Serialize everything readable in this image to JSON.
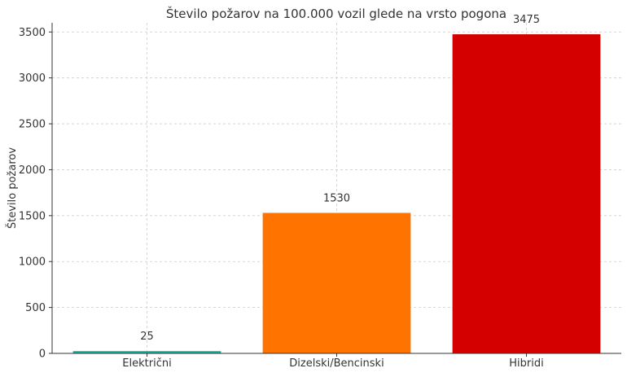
{
  "chart_data": {
    "type": "bar",
    "title": "Število požarov na 100.000 vozil glede na vrsto pogona",
    "xlabel": "",
    "ylabel": "Število požarov",
    "categories": [
      "Električni",
      "Dizelski/Bencinski",
      "Hibridi"
    ],
    "values": [
      25,
      1530,
      3475
    ],
    "data_labels": [
      "25",
      "1530",
      "3475"
    ],
    "colors": [
      "#1aae9f",
      "#ff7300",
      "#d40000"
    ],
    "ylim": [
      0,
      3600
    ],
    "yticks": [
      0,
      500,
      1000,
      1500,
      2000,
      2500,
      3000,
      3500
    ],
    "ytick_labels": [
      "0",
      "500",
      "1000",
      "1500",
      "2000",
      "2500",
      "3000",
      "3500"
    ],
    "grid": true,
    "legend": "none"
  }
}
